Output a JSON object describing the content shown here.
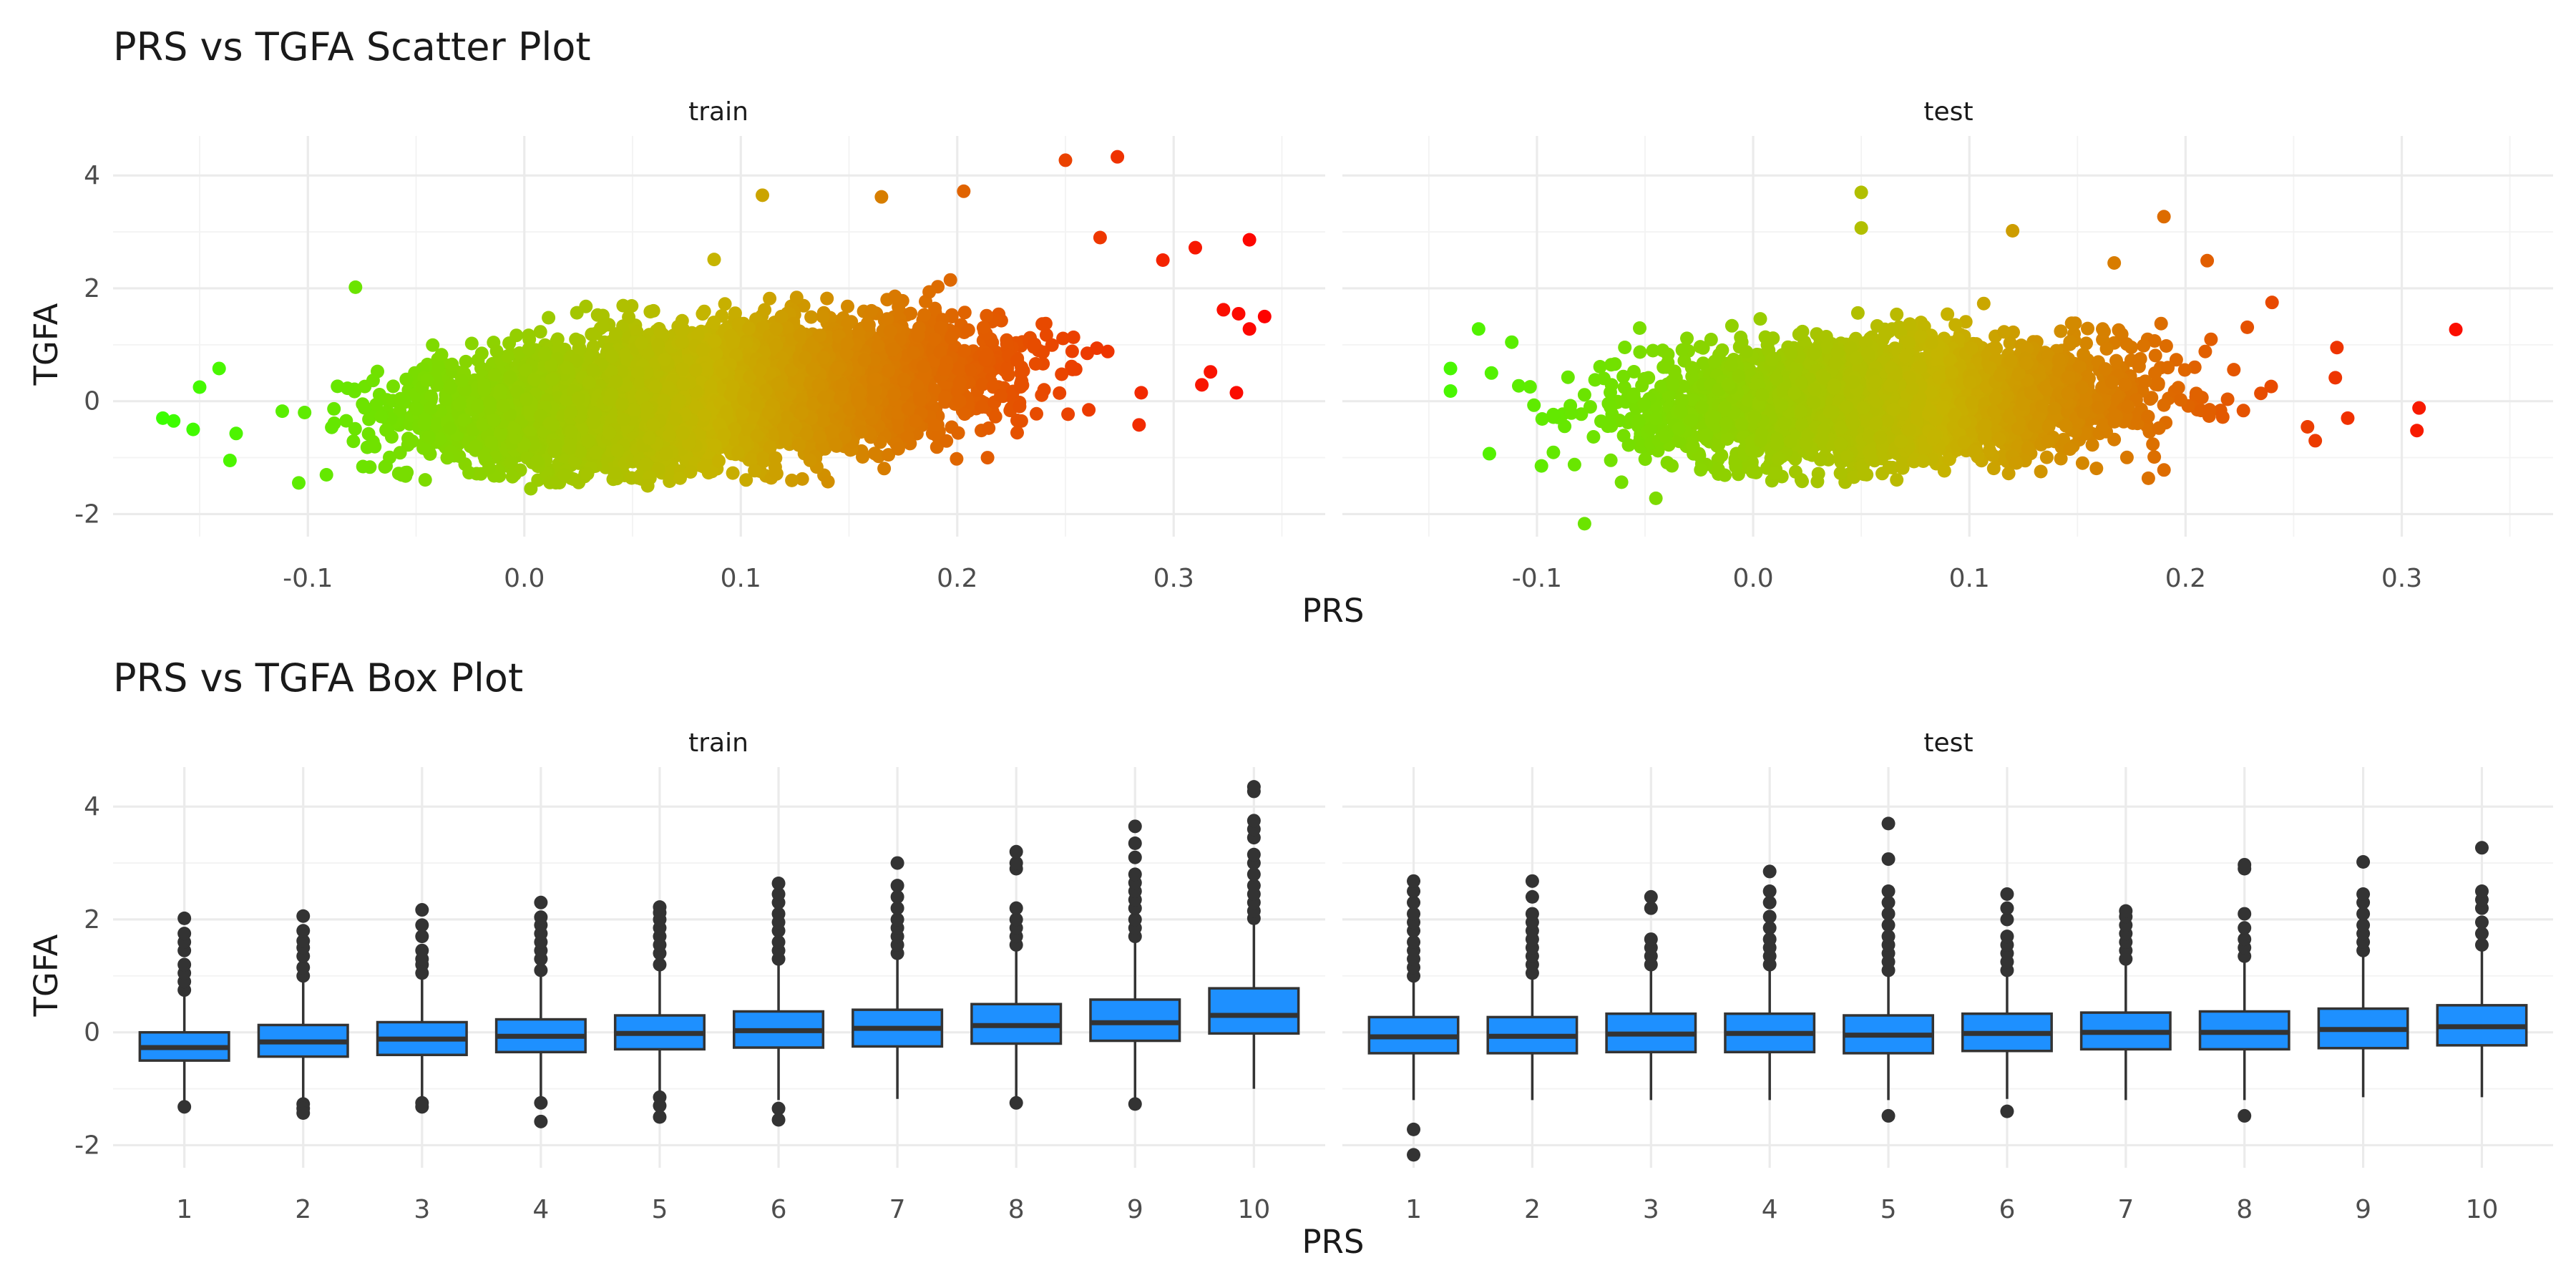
{
  "chart_data": [
    {
      "type": "scatter",
      "title": "PRS vs TGFA Scatter Plot",
      "xlabel": "PRS",
      "ylabel": "TGFA",
      "facets": [
        "train",
        "test"
      ],
      "x_ticks": [
        "-0.1",
        "0.0",
        "0.1",
        "0.2",
        "0.3"
      ],
      "y_ticks": [
        "-2",
        "0",
        "2",
        "4"
      ],
      "xlim": [
        -0.19,
        0.37
      ],
      "ylim": [
        -2.4,
        4.7
      ],
      "grid": true,
      "color_scale": {
        "low": "#39ff00",
        "mid": "#c6b400",
        "high": "#ff0000",
        "mapped_to": "PRS"
      },
      "series": [
        {
          "facet": "train",
          "trend": {
            "x": [
              -0.17,
              0.0,
              0.1,
              0.2,
              0.3
            ],
            "y_center": [
              -0.45,
              -0.15,
              0.15,
              0.45,
              0.75
            ]
          },
          "points": [
            {
              "x": -0.167,
              "y": -0.3
            },
            {
              "x": -0.162,
              "y": -0.35
            },
            {
              "x": -0.153,
              "y": -0.5
            },
            {
              "x": -0.15,
              "y": 0.25
            },
            {
              "x": -0.141,
              "y": 0.58
            },
            {
              "x": -0.136,
              "y": -1.05
            },
            {
              "x": -0.078,
              "y": 2.02
            },
            {
              "x": 0.003,
              "y": -1.55
            },
            {
              "x": 0.057,
              "y": -1.5
            },
            {
              "x": 0.11,
              "y": 3.65
            },
            {
              "x": 0.165,
              "y": 3.62
            },
            {
              "x": 0.203,
              "y": 3.72
            },
            {
              "x": 0.25,
              "y": 4.27
            },
            {
              "x": 0.274,
              "y": 4.33
            },
            {
              "x": 0.266,
              "y": 2.9
            },
            {
              "x": 0.295,
              "y": 2.5
            },
            {
              "x": 0.31,
              "y": 2.72
            },
            {
              "x": 0.335,
              "y": 2.86
            },
            {
              "x": 0.323,
              "y": 1.62
            },
            {
              "x": 0.33,
              "y": 1.55
            },
            {
              "x": 0.342,
              "y": 1.5
            },
            {
              "x": 0.335,
              "y": 1.28
            },
            {
              "x": 0.317,
              "y": 0.52
            },
            {
              "x": 0.313,
              "y": 0.29
            },
            {
              "x": 0.329,
              "y": 0.15
            },
            {
              "x": 0.285,
              "y": 0.15
            },
            {
              "x": 0.284,
              "y": -0.42
            },
            {
              "x": 0.214,
              "y": -1.0
            }
          ]
        },
        {
          "facet": "test",
          "trend": {
            "x": [
              -0.14,
              0.0,
              0.1,
              0.2,
              0.3
            ],
            "y_center": [
              -0.15,
              -0.05,
              0.05,
              0.15,
              0.25
            ]
          },
          "points": [
            {
              "x": -0.14,
              "y": 0.58
            },
            {
              "x": -0.14,
              "y": 0.18
            },
            {
              "x": -0.127,
              "y": 1.28
            },
            {
              "x": -0.122,
              "y": -0.93
            },
            {
              "x": -0.078,
              "y": -2.17
            },
            {
              "x": -0.045,
              "y": -1.72
            },
            {
              "x": 0.05,
              "y": 3.7
            },
            {
              "x": 0.05,
              "y": 3.07
            },
            {
              "x": 0.12,
              "y": 3.02
            },
            {
              "x": 0.167,
              "y": 2.45
            },
            {
              "x": 0.19,
              "y": 3.27
            },
            {
              "x": 0.21,
              "y": 2.49
            },
            {
              "x": 0.24,
              "y": 1.75
            },
            {
              "x": 0.27,
              "y": 0.95
            },
            {
              "x": 0.275,
              "y": -0.3
            },
            {
              "x": 0.308,
              "y": -0.12
            },
            {
              "x": 0.307,
              "y": -0.52
            },
            {
              "x": 0.325,
              "y": 1.27
            },
            {
              "x": 0.26,
              "y": -0.7
            }
          ]
        }
      ]
    },
    {
      "type": "box",
      "title": "PRS vs TGFA Box Plot",
      "xlabel": "PRS",
      "ylabel": "TGFA",
      "facets": [
        "train",
        "test"
      ],
      "categories": [
        "1",
        "2",
        "3",
        "4",
        "5",
        "6",
        "7",
        "8",
        "9",
        "10"
      ],
      "y_ticks": [
        "-2",
        "0",
        "2",
        "4"
      ],
      "ylim": [
        -2.4,
        4.7
      ],
      "grid": true,
      "fill": "#1e90ff",
      "series": [
        {
          "facet": "train",
          "boxes": [
            {
              "q1": -0.5,
              "median": -0.27,
              "q3": 0.0,
              "lower": -1.3,
              "upper": 0.7,
              "outliers": [
                -1.32,
                0.75,
                0.9,
                1.05,
                1.2,
                1.45,
                1.6,
                1.75,
                2.02
              ]
            },
            {
              "q1": -0.43,
              "median": -0.17,
              "q3": 0.13,
              "lower": -1.2,
              "upper": 0.95,
              "outliers": [
                -1.27,
                -1.35,
                -1.43,
                1.0,
                1.15,
                1.35,
                1.5,
                1.62,
                1.8,
                2.06
              ]
            },
            {
              "q1": -0.4,
              "median": -0.12,
              "q3": 0.18,
              "lower": -1.2,
              "upper": 1.0,
              "outliers": [
                -1.25,
                -1.32,
                1.05,
                1.2,
                1.3,
                1.45,
                1.7,
                1.9,
                2.17
              ]
            },
            {
              "q1": -0.35,
              "median": -0.07,
              "q3": 0.23,
              "lower": -1.2,
              "upper": 1.05,
              "outliers": [
                -1.25,
                -1.58,
                1.1,
                1.3,
                1.45,
                1.6,
                1.75,
                1.9,
                2.04,
                2.3
              ]
            },
            {
              "q1": -0.3,
              "median": -0.02,
              "q3": 0.3,
              "lower": -1.1,
              "upper": 1.15,
              "outliers": [
                -1.15,
                -1.3,
                -1.5,
                1.2,
                1.4,
                1.55,
                1.7,
                1.85,
                2.0,
                2.12,
                2.22
              ]
            },
            {
              "q1": -0.27,
              "median": 0.03,
              "q3": 0.37,
              "lower": -1.2,
              "upper": 1.25,
              "outliers": [
                -1.35,
                -1.55,
                1.3,
                1.45,
                1.6,
                1.8,
                1.95,
                2.1,
                2.3,
                2.45,
                2.64
              ]
            },
            {
              "q1": -0.25,
              "median": 0.07,
              "q3": 0.4,
              "lower": -1.18,
              "upper": 1.35,
              "outliers": [
                1.4,
                1.55,
                1.7,
                1.85,
                2.0,
                2.2,
                2.4,
                2.6,
                3.0
              ]
            },
            {
              "q1": -0.2,
              "median": 0.12,
              "q3": 0.5,
              "lower": -1.2,
              "upper": 1.5,
              "outliers": [
                -1.25,
                1.55,
                1.7,
                1.85,
                2.0,
                2.2,
                2.9,
                3.0,
                3.2
              ]
            },
            {
              "q1": -0.15,
              "median": 0.17,
              "q3": 0.58,
              "lower": -1.2,
              "upper": 1.65,
              "outliers": [
                -1.27,
                1.7,
                1.85,
                2.0,
                2.2,
                2.35,
                2.5,
                2.65,
                2.8,
                3.1,
                3.35,
                3.65
              ]
            },
            {
              "q1": -0.02,
              "median": 0.3,
              "q3": 0.78,
              "lower": -1.0,
              "upper": 1.98,
              "outliers": [
                2.02,
                2.15,
                2.3,
                2.45,
                2.6,
                2.8,
                3.0,
                3.15,
                3.45,
                3.6,
                3.75,
                4.27,
                4.35
              ]
            }
          ]
        },
        {
          "facet": "test",
          "boxes": [
            {
              "q1": -0.37,
              "median": -0.08,
              "q3": 0.27,
              "lower": -1.2,
              "upper": 0.95,
              "outliers": [
                -1.72,
                -2.17,
                1.0,
                1.15,
                1.3,
                1.45,
                1.6,
                1.8,
                1.95,
                2.1,
                2.3,
                2.5,
                2.68
              ]
            },
            {
              "q1": -0.37,
              "median": -0.07,
              "q3": 0.27,
              "lower": -1.2,
              "upper": 0.98,
              "outliers": [
                1.05,
                1.2,
                1.35,
                1.5,
                1.65,
                1.8,
                1.95,
                2.1,
                2.4,
                2.68
              ]
            },
            {
              "q1": -0.35,
              "median": -0.03,
              "q3": 0.33,
              "lower": -1.2,
              "upper": 1.15,
              "outliers": [
                1.2,
                1.35,
                1.5,
                1.65,
                2.2,
                2.4
              ]
            },
            {
              "q1": -0.35,
              "median": -0.02,
              "q3": 0.33,
              "lower": -1.2,
              "upper": 1.1,
              "outliers": [
                1.2,
                1.35,
                1.5,
                1.65,
                1.85,
                2.05,
                2.3,
                2.5,
                2.85
              ]
            },
            {
              "q1": -0.37,
              "median": -0.05,
              "q3": 0.3,
              "lower": -1.2,
              "upper": 1.05,
              "outliers": [
                -1.48,
                1.1,
                1.25,
                1.4,
                1.55,
                1.7,
                1.9,
                2.1,
                2.3,
                2.5,
                3.07,
                3.7
              ]
            },
            {
              "q1": -0.33,
              "median": -0.02,
              "q3": 0.33,
              "lower": -1.18,
              "upper": 1.05,
              "outliers": [
                -1.4,
                1.1,
                1.25,
                1.4,
                1.55,
                1.7,
                2.0,
                2.2,
                2.45
              ]
            },
            {
              "q1": -0.3,
              "median": 0.0,
              "q3": 0.35,
              "lower": -1.2,
              "upper": 1.25,
              "outliers": [
                1.3,
                1.45,
                1.6,
                1.75,
                1.9,
                2.05,
                2.15
              ]
            },
            {
              "q1": -0.3,
              "median": 0.0,
              "q3": 0.37,
              "lower": -1.2,
              "upper": 1.3,
              "outliers": [
                -1.48,
                1.35,
                1.5,
                1.65,
                1.85,
                2.1,
                2.9,
                2.97
              ]
            },
            {
              "q1": -0.28,
              "median": 0.05,
              "q3": 0.42,
              "lower": -1.15,
              "upper": 1.4,
              "outliers": [
                1.45,
                1.6,
                1.75,
                1.9,
                2.1,
                2.3,
                2.45,
                3.02
              ]
            },
            {
              "q1": -0.23,
              "median": 0.1,
              "q3": 0.48,
              "lower": -1.15,
              "upper": 1.5,
              "outliers": [
                1.55,
                1.75,
                1.95,
                2.2,
                2.35,
                2.5,
                3.27
              ]
            }
          ]
        }
      ]
    }
  ]
}
